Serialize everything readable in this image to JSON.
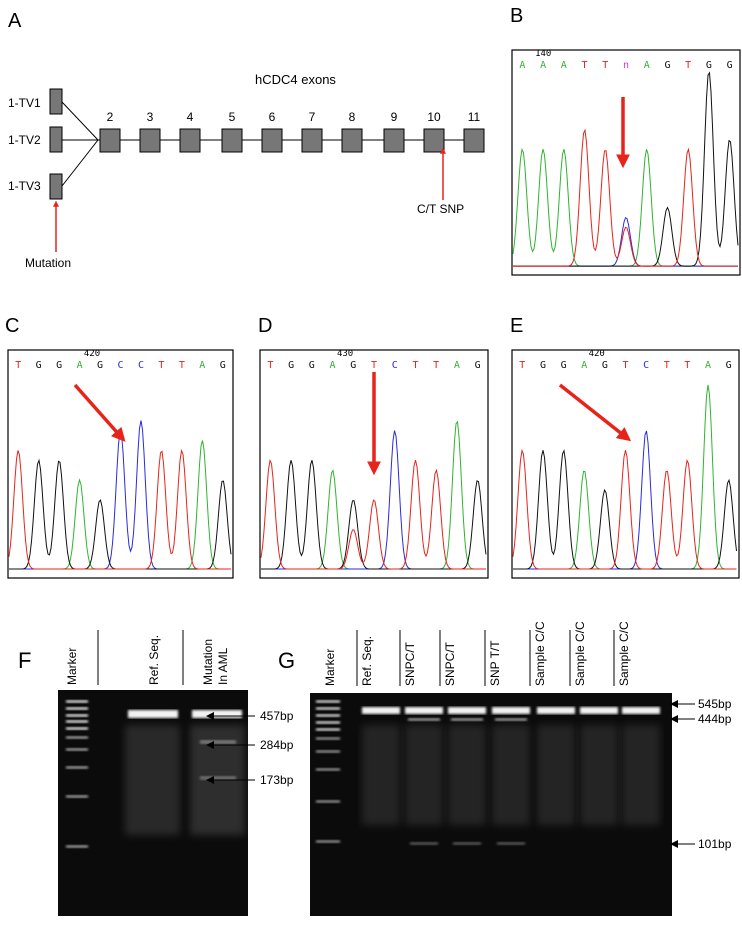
{
  "panels": {
    "a": "A",
    "b": "B",
    "c": "C",
    "d": "D",
    "e": "E",
    "f": "F",
    "g": "G"
  },
  "panel_a": {
    "title": "hCDC4 exons",
    "variants": [
      "1-TV1",
      "1-TV2",
      "1-TV3"
    ],
    "exons": [
      "2",
      "3",
      "4",
      "5",
      "6",
      "7",
      "8",
      "9",
      "10",
      "11"
    ],
    "snp_label": "C/T SNP",
    "mutation_label": "Mutation",
    "arrow_color": "#e8231a"
  },
  "chromatograms": {
    "b": {
      "position": "140",
      "bases": [
        "A",
        "A",
        "A",
        "T",
        "T",
        "n",
        "A",
        "G",
        "T",
        "G",
        "G"
      ]
    },
    "c": {
      "position": "420",
      "bases": [
        "T",
        "G",
        "G",
        "A",
        "G",
        "C",
        "C",
        "T",
        "T",
        "A",
        "G"
      ]
    },
    "d": {
      "position": "430",
      "bases": [
        "T",
        "G",
        "G",
        "A",
        "G",
        "T",
        "C",
        "T",
        "T",
        "A",
        "G"
      ]
    },
    "e": {
      "position": "420",
      "bases": [
        "T",
        "G",
        "G",
        "A",
        "G",
        "T",
        "C",
        "T",
        "T",
        "A",
        "G"
      ]
    }
  },
  "base_colors": {
    "A": "#2fb52f",
    "T": "#e8231a",
    "C": "#2a2adf",
    "G": "#111111",
    "n": "#d040d0"
  },
  "gel_f": {
    "lanes": [
      "Marker",
      "Ref. Seq.",
      "Mutation\nIn AML"
    ],
    "lane3_line1": "Mutation",
    "lane3_line2": "In AML",
    "bands": [
      "457bp",
      "284bp",
      "173bp"
    ]
  },
  "gel_g": {
    "lanes": [
      "Marker",
      "Ref. Seq.",
      "SNPC/T",
      "SNPC/T",
      "SNP T/T",
      "Sample C/C",
      "Sample C/C",
      "Sample C/C"
    ],
    "bands": [
      "545bp",
      "444bp",
      "101bp"
    ]
  }
}
